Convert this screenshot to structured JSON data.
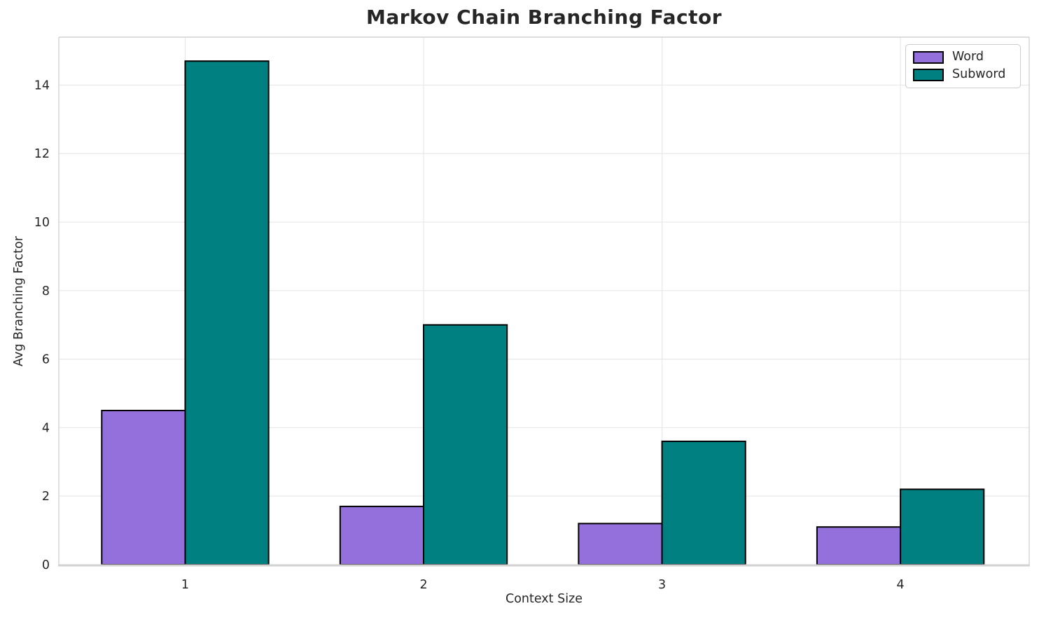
{
  "chart_data": {
    "type": "bar",
    "title": "Markov Chain Branching Factor",
    "xlabel": "Context Size",
    "ylabel": "Avg Branching Factor",
    "categories": [
      "1",
      "2",
      "3",
      "4"
    ],
    "series": [
      {
        "name": "Word",
        "color": "#9370DB",
        "values": [
          4.5,
          1.7,
          1.2,
          1.1
        ]
      },
      {
        "name": "Subword",
        "color": "#008080",
        "values": [
          14.7,
          7.0,
          3.6,
          2.2
        ]
      }
    ],
    "bar_width_units": 0.35,
    "bar_edge_color": "#000000",
    "yticks": [
      0,
      2,
      4,
      6,
      8,
      10,
      12,
      14
    ],
    "ylim": [
      0,
      15.4
    ],
    "grid": true,
    "grid_color": "#e8e8e8",
    "spine_color": "#d2d2d2",
    "tick_label_color": "#262626",
    "legend_position": "upper right"
  }
}
